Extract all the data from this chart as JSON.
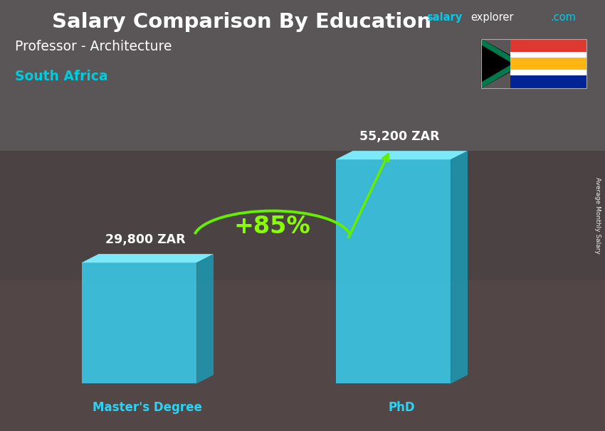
{
  "title": "Salary Comparison By Education",
  "subtitle": "Professor - Architecture",
  "country": "South Africa",
  "watermark_salary": "salary",
  "watermark_explorer": "explorer",
  "watermark_com": ".com",
  "categories": [
    "Master's Degree",
    "PhD"
  ],
  "values": [
    29800,
    55200
  ],
  "value_labels": [
    "29,800 ZAR",
    "55,200 ZAR"
  ],
  "pct_change": "+85%",
  "face_color": "#38d4f5",
  "top_color": "#7eeeff",
  "side_color": "#1a9db8",
  "ylabel": "Average Monthly Salary",
  "title_color": "#ffffff",
  "subtitle_color": "#ffffff",
  "country_color": "#00ccdd",
  "xlabel_color": "#29d4f5",
  "bg_color_top": "#7a7a6a",
  "bg_color_bot": "#5a5040",
  "pct_color": "#88ff00",
  "arrow_color": "#66ee00",
  "watermark_color1": "#00ccee",
  "watermark_color2": "#ffffff",
  "flag_red": "#de3831",
  "flag_blue": "#002395",
  "flag_green": "#007a4d",
  "flag_gold": "#ffb612",
  "flag_white": "#ffffff",
  "flag_black": "#000000"
}
